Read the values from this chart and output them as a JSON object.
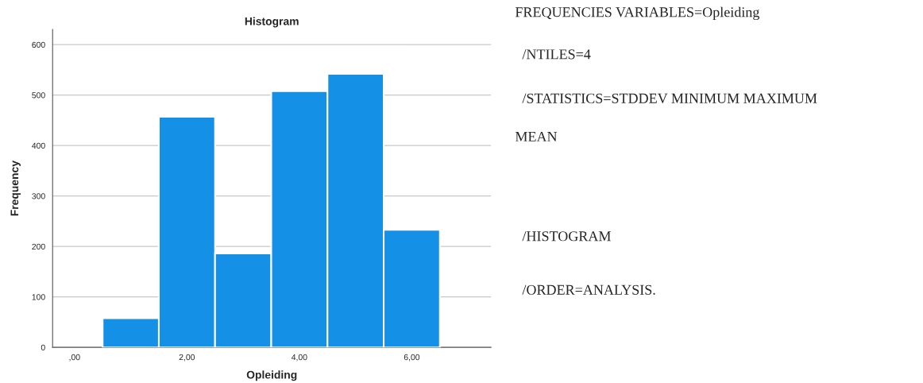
{
  "chart_data": {
    "type": "histogram",
    "title": "Histogram",
    "xlabel": "Opleiding",
    "ylabel": "Frequency",
    "bins": [
      0.5,
      1.5,
      2.5,
      3.5,
      4.5,
      5.5,
      6.5
    ],
    "values": [
      58,
      457,
      186,
      508,
      542,
      233
    ],
    "color": "#1490e6",
    "xlim": [
      -0.39,
      7.41
    ],
    "xticks": [
      {
        "value": 0,
        "label": ",00"
      },
      {
        "value": 2,
        "label": "2,00"
      },
      {
        "value": 4,
        "label": "4,00"
      },
      {
        "value": 6,
        "label": "6,00"
      }
    ],
    "ylim": [
      0,
      630
    ],
    "yticks": [
      0,
      100,
      200,
      300,
      400,
      500,
      600
    ],
    "grid": "y",
    "annotations": [
      "FREQUENCIES VARIABLES=Opleiding",
      "  /NTILES=4",
      "  /STATISTICS=STDDEV MINIMUM MAXIMUM",
      "MEAN",
      "  /HISTOGRAM",
      "  /ORDER=ANALYSIS."
    ]
  }
}
